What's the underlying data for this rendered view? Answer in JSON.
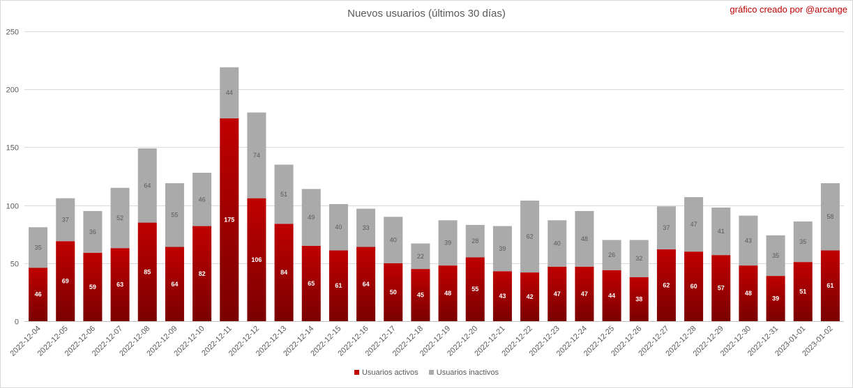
{
  "title": "Nuevos usuarios (últimos 30 días)",
  "credit": "gráfico creado por @arcange",
  "colors": {
    "active": "#c00000",
    "active_dark": "#7a0000",
    "inactive": "#aaaaaa",
    "grid": "#d9d9d9"
  },
  "chart_data": {
    "type": "bar",
    "stacked": true,
    "title": "Nuevos usuarios (últimos 30 días)",
    "xlabel": "",
    "ylabel": "",
    "ylim": [
      0,
      250
    ],
    "yticks": [
      0,
      50,
      100,
      150,
      200,
      250
    ],
    "grid": true,
    "legend": "bottom",
    "categories": [
      "2022-12-04",
      "2022-12-05",
      "2022-12-06",
      "2022-12-07",
      "2022-12-08",
      "2022-12-09",
      "2022-12-10",
      "2022-12-11",
      "2022-12-12",
      "2022-12-13",
      "2022-12-14",
      "2022-12-15",
      "2022-12-16",
      "2022-12-17",
      "2022-12-18",
      "2022-12-19",
      "2022-12-20",
      "2022-12-21",
      "2022-12-22",
      "2022-12-23",
      "2022-12-24",
      "2022-12-25",
      "2022-12-26",
      "2022-12-27",
      "2022-12-28",
      "2022-12-29",
      "2022-12-30",
      "2022-12-31",
      "2023-01-01",
      "2023-01-02"
    ],
    "series": [
      {
        "name": "Usuarios activos",
        "values": [
          46,
          69,
          59,
          63,
          85,
          64,
          82,
          175,
          106,
          84,
          65,
          61,
          64,
          50,
          45,
          48,
          55,
          43,
          42,
          47,
          47,
          44,
          38,
          62,
          60,
          57,
          48,
          39,
          51,
          61
        ]
      },
      {
        "name": "Usuarios inactivos",
        "values": [
          35,
          37,
          36,
          52,
          64,
          55,
          46,
          44,
          74,
          51,
          49,
          40,
          33,
          40,
          22,
          39,
          28,
          39,
          62,
          40,
          48,
          26,
          32,
          37,
          47,
          41,
          43,
          35,
          35,
          58
        ]
      }
    ]
  }
}
